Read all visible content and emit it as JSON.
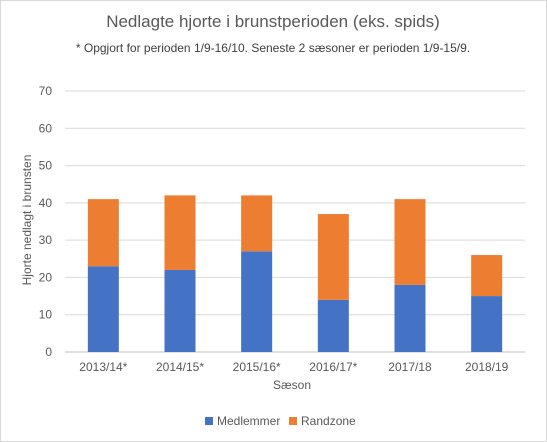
{
  "chart_data": {
    "type": "bar",
    "stacked": true,
    "title": "Nedlagte hjorte i brunstperioden  (eks. spids)",
    "subtitle": "* Opgjort for perioden 1/9-16/10. Seneste 2 sæsoner er perioden 1/9-15/9.",
    "xlabel": "Sæson",
    "ylabel": "Hjorte nedlagt i brunsten",
    "ylim": [
      0,
      70
    ],
    "yticks": [
      0,
      10,
      20,
      30,
      40,
      50,
      60,
      70
    ],
    "grid": true,
    "legend_position": "bottom",
    "categories": [
      "2013/14*",
      "2014/15*",
      "2015/16*",
      "2016/17*",
      "2017/18",
      "2018/19"
    ],
    "series": [
      {
        "name": "Medlemmer",
        "color": "#4472C4",
        "values": [
          23,
          22,
          27,
          14,
          18,
          15
        ]
      },
      {
        "name": "Randzone",
        "color": "#ED7D31",
        "values": [
          18,
          20,
          15,
          23,
          23,
          11
        ]
      }
    ]
  }
}
